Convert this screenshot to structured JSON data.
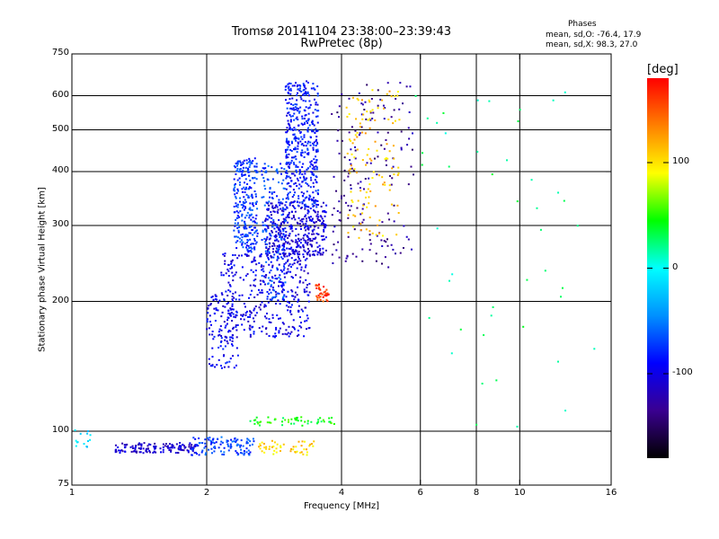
{
  "title_line1": "Tromsø 20141104 23:38:00–23:39:43",
  "title_line2": "RwPretec (8p)",
  "phases": {
    "header": "Phases",
    "line_o": "mean, sd,O: -76.4, 17.9",
    "line_x": "mean, sd,X:  98.3, 27.0"
  },
  "colorbar": {
    "title": "[deg]",
    "ticks": [
      "100",
      "0",
      "-100"
    ],
    "tick_values": [
      100,
      0,
      -100
    ],
    "range": [
      -180,
      180
    ],
    "colors": [
      "#000000",
      "#3a0090",
      "#0000ff",
      "#0090ff",
      "#00ffff",
      "#00ff00",
      "#ffff00",
      "#ff8000",
      "#ff0000"
    ]
  },
  "chart_data": {
    "type": "scatter",
    "title": "Tromsø 20141104 23:38:00–23:39:43",
    "subtitle": "RwPretec (8p)",
    "xlabel": "Frequency [MHz]",
    "ylabel": "Stationary phase Virtual Height [km]",
    "x_scale": "log",
    "y_scale": "log",
    "xlim": [
      1,
      16
    ],
    "ylim": [
      75,
      750
    ],
    "grid": true,
    "x_ticks": [
      1,
      2,
      4,
      6,
      8,
      10,
      16
    ],
    "x_tick_labels": [
      "1",
      "2",
      "4",
      "6",
      "8",
      "10",
      "16"
    ],
    "y_ticks": [
      75,
      100,
      200,
      300,
      400,
      500,
      600,
      750
    ],
    "y_tick_labels": [
      "75",
      "100",
      "200",
      "300",
      "400",
      "500",
      "600",
      "750"
    ],
    "x_gridlines": [
      2,
      4,
      6,
      8,
      10
    ],
    "y_gridlines": [
      100,
      200,
      300,
      400,
      500,
      600
    ],
    "color_by": "phase [deg]",
    "point_groups": [
      {
        "x": [
          1.0,
          1.1
        ],
        "y": [
          90,
          102
        ],
        "phase": -15,
        "count": 14
      },
      {
        "x": [
          1.25,
          1.9
        ],
        "y": [
          89,
          94
        ],
        "phase": -110,
        "count": 140
      },
      {
        "x": [
          1.85,
          2.55
        ],
        "y": [
          88,
          97
        ],
        "phase": -70,
        "count": 110
      },
      {
        "x": [
          2.6,
          3.5
        ],
        "y": [
          88,
          95
        ],
        "phase": 105,
        "count": 50
      },
      {
        "x": [
          2.5,
          3.9
        ],
        "y": [
          103,
          108
        ],
        "phase": 45,
        "count": 55
      },
      {
        "x": [
          2.0,
          2.35
        ],
        "y": [
          140,
          210
        ],
        "phase": -95,
        "count": 110
      },
      {
        "x": [
          2.15,
          3.4
        ],
        "y": [
          165,
          260
        ],
        "phase": -100,
        "count": 380
      },
      {
        "x": [
          2.3,
          2.6
        ],
        "y": [
          260,
          430
        ],
        "phase": -75,
        "count": 260
      },
      {
        "x": [
          2.7,
          3.7
        ],
        "y": [
          255,
          340
        ],
        "phase": -105,
        "count": 380
      },
      {
        "x": [
          3.0,
          3.55
        ],
        "y": [
          330,
          650
        ],
        "phase": -85,
        "count": 430
      },
      {
        "x": [
          2.65,
          3.0
        ],
        "y": [
          200,
          420
        ],
        "phase": -70,
        "count": 160
      },
      {
        "x": [
          3.5,
          3.75
        ],
        "y": [
          200,
          220
        ],
        "phase": 160,
        "count": 35
      },
      {
        "x": [
          3.8,
          5.8
        ],
        "y": [
          240,
          650
        ],
        "phase": -130,
        "count": 170
      },
      {
        "x": [
          4.1,
          5.4
        ],
        "y": [
          280,
          630
        ],
        "phase": 110,
        "count": 120
      },
      {
        "x": [
          5.7,
          15
        ],
        "y": [
          100,
          650
        ],
        "phase": 20,
        "count": 45
      }
    ]
  }
}
